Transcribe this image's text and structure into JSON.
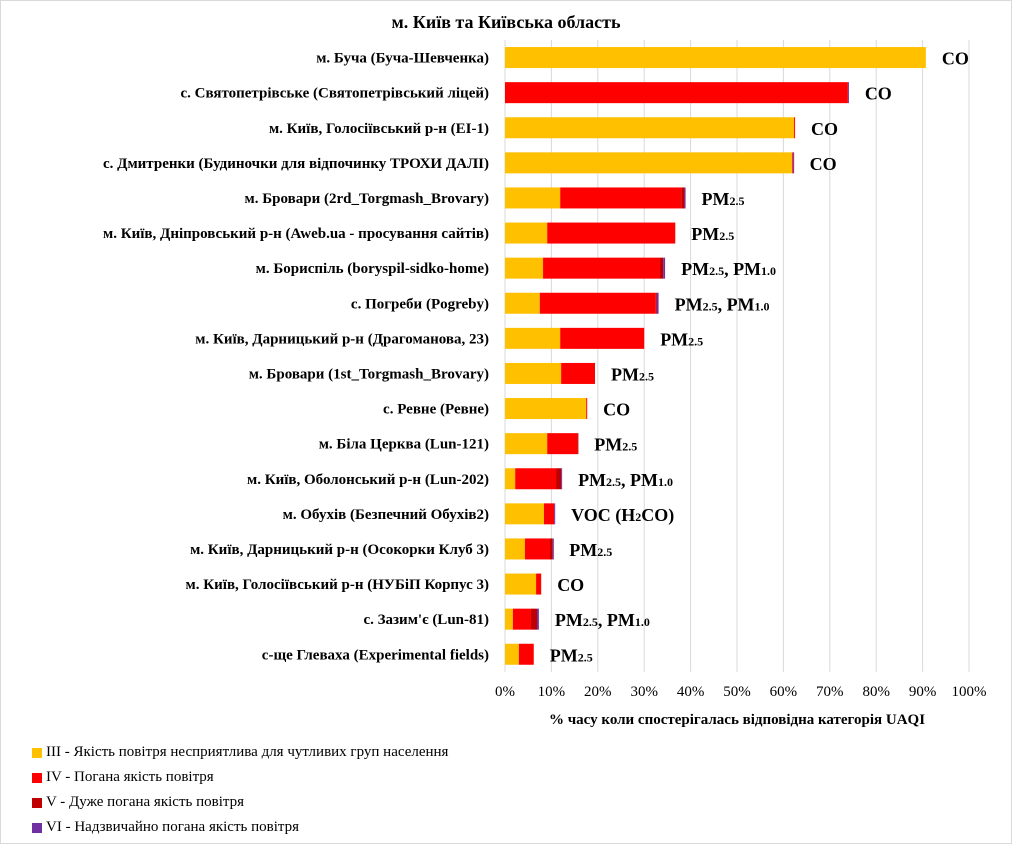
{
  "chart_data": {
    "type": "bar",
    "orientation": "horizontal",
    "stacked": true,
    "title": "м. Київ та Київська  область",
    "xlabel": "% часу коли спостерігалась відповідна категорія UAQI",
    "ylabel": "",
    "xlim": [
      0,
      100
    ],
    "grid": true,
    "legend_position": "bottom-left",
    "x_ticks": [
      "0%",
      "10%",
      "20%",
      "30%",
      "40%",
      "50%",
      "60%",
      "70%",
      "80%",
      "90%",
      "100%"
    ],
    "categories": [
      "м. Буча (Буча-Шевченка)",
      "с. Святопетрівське (Святопетрівський ліцей)",
      "м. Київ, Голосіївський р-н (ЕІ-1)",
      "с. Дмитренки (Будиночки для відпочинку ТРОХИ ДАЛІ)",
      "м. Бровари (2rd_Torgmash_Brovary)",
      "м. Київ, Дніпровський р-н (Aweb.ua - просування сайтів)",
      "м. Бориспіль (boryspil-sidko-home)",
      "с. Погреби (Pogreby)",
      "м. Київ, Дарницький р-н (Драгоманова, 23)",
      "м. Бровари (1st_Torgmash_Brovary)",
      "с. Ревне (Ревне)",
      "м. Біла Церква (Lun-121)",
      "м. Київ, Оболонський р-н (Lun-202)",
      "м. Обухів (Безпечний Обухів2)",
      "м. Київ, Дарницький р-н (Осокорки Клуб 3)",
      "м. Київ, Голосіївський р-н (НУБіП Корпус 3)",
      "с. Зазим'є (Lun-81)",
      "с-ще Глеваха (Experimental fields)"
    ],
    "series": [
      {
        "name": "III - Якість повітря несприятлива для чутливих груп населення",
        "color": "#FFC000",
        "values": [
          90.7,
          0.0,
          62.3,
          61.9,
          11.9,
          9.1,
          8.2,
          7.5,
          11.9,
          12.1,
          17.5,
          9.1,
          2.2,
          8.4,
          4.3,
          6.7,
          1.7,
          3.0
        ]
      },
      {
        "name": "IV - Погана якість повітря",
        "color": "#FF0000",
        "values": [
          0.0,
          73.9,
          0.2,
          0.2,
          26.1,
          27.6,
          25.2,
          25.0,
          18.1,
          7.3,
          0.2,
          6.5,
          8.8,
          2.2,
          5.4,
          1.1,
          3.9,
          3.2
        ]
      },
      {
        "name": "V - Дуже погана якість повітря",
        "color": "#C00000",
        "values": [
          0.0,
          0.0,
          0.0,
          0.0,
          0.7,
          0.0,
          0.7,
          0.2,
          0.0,
          0.0,
          0.0,
          0.2,
          1.1,
          0.0,
          0.6,
          0.0,
          1.3,
          0.0
        ]
      },
      {
        "name": "VI - Надзвичайно погана якість повітря",
        "color": "#7030A0",
        "values": [
          0.0,
          0.2,
          0.0,
          0.1,
          0.2,
          0.0,
          0.4,
          0.4,
          0.0,
          0.0,
          0.0,
          0.0,
          0.2,
          0.2,
          0.1,
          0.0,
          0.4,
          0.0
        ]
      }
    ],
    "annotations": [
      [
        {
          "t": "CO"
        }
      ],
      [
        {
          "t": "CO"
        }
      ],
      [
        {
          "t": "CO"
        }
      ],
      [
        {
          "t": "CO"
        }
      ],
      [
        {
          "t": "PM"
        },
        {
          "t": "2.5",
          "sub": true
        }
      ],
      [
        {
          "t": "PM"
        },
        {
          "t": "2.5",
          "sub": true
        }
      ],
      [
        {
          "t": "PM"
        },
        {
          "t": "2.5",
          "sub": true
        },
        {
          "t": ", PM"
        },
        {
          "t": "1.0",
          "sub": true
        }
      ],
      [
        {
          "t": "PM"
        },
        {
          "t": "2.5",
          "sub": true
        },
        {
          "t": ", PM"
        },
        {
          "t": "1.0",
          "sub": true
        }
      ],
      [
        {
          "t": "PM"
        },
        {
          "t": "2.5",
          "sub": true
        }
      ],
      [
        {
          "t": "PM"
        },
        {
          "t": "2.5",
          "sub": true
        }
      ],
      [
        {
          "t": "CO"
        }
      ],
      [
        {
          "t": "PM"
        },
        {
          "t": "2.5",
          "sub": true
        }
      ],
      [
        {
          "t": "PM"
        },
        {
          "t": "2.5",
          "sub": true
        },
        {
          "t": ", PM"
        },
        {
          "t": "1.0",
          "sub": true
        }
      ],
      [
        {
          "t": "VOC (H"
        },
        {
          "t": "2",
          "sub": true
        },
        {
          "t": "CO)"
        }
      ],
      [
        {
          "t": "PM"
        },
        {
          "t": "2.5",
          "sub": true
        }
      ],
      [
        {
          "t": "CO"
        }
      ],
      [
        {
          "t": "PM"
        },
        {
          "t": "2.5",
          "sub": true
        },
        {
          "t": ", PM"
        },
        {
          "t": "1.0",
          "sub": true
        }
      ],
      [
        {
          "t": "PM"
        },
        {
          "t": "2.5",
          "sub": true
        }
      ]
    ]
  },
  "colors": {
    "gridline": "#d9d9d9",
    "axis": "#d9d9d9"
  }
}
